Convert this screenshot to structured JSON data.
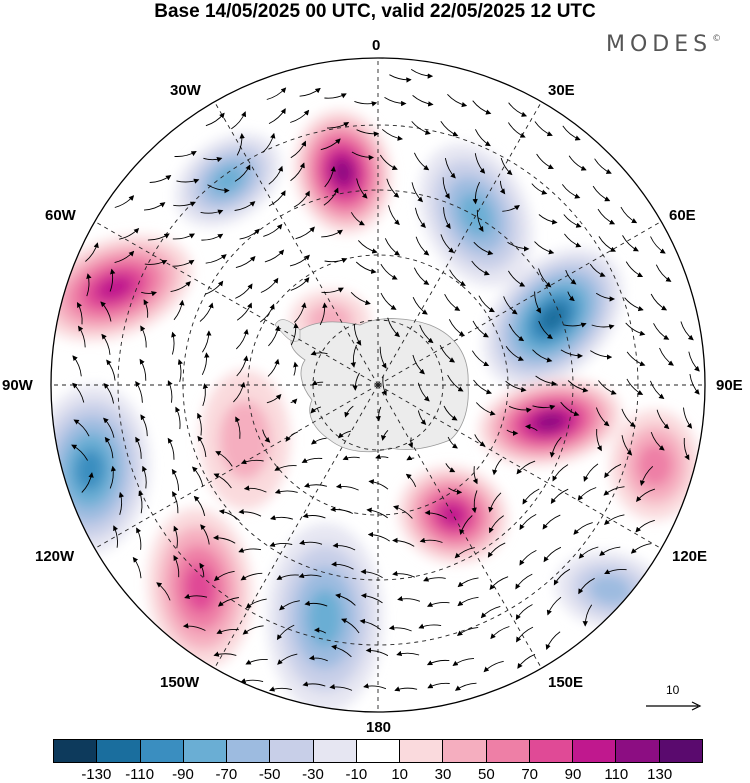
{
  "title": "Base 14/05/2025 00 UTC, valid 22/05/2025 12 UTC",
  "brand": {
    "name": "MODES",
    "mark": "©"
  },
  "lon_labels": {
    "l0": "0",
    "l30e": "30E",
    "l60e": "60E",
    "l90e": "90E",
    "l120e": "120E",
    "l150e": "150E",
    "l180": "180",
    "l150w": "150W",
    "l120w": "120W",
    "l90w": "90W",
    "l60w": "60W",
    "l30w": "30W"
  },
  "reference_vector": {
    "label": "10"
  },
  "colorbar": {
    "colors": [
      "#0d3a5c",
      "#1a6e9e",
      "#3a8ec0",
      "#6aaed4",
      "#9dbbe0",
      "#c8cfe8",
      "#e6e6f2",
      "#ffffff",
      "#fadadd",
      "#f5aebf",
      "#ee7fa6",
      "#e04a96",
      "#c0188e",
      "#8c0d82",
      "#5a0a6e"
    ],
    "ticks": [
      "-130",
      "-110",
      "-90",
      "-70",
      "-50",
      "-30",
      "-10",
      "10",
      "30",
      "50",
      "70",
      "90",
      "110",
      "130"
    ]
  },
  "projection": "south-polar-stereographic",
  "field_features": [
    {
      "sign": "neg",
      "level": 70
    },
    {
      "sign": "pos",
      "level": 110
    },
    {
      "sign": "neg",
      "level": 70
    },
    {
      "sign": "pos",
      "level": 90
    },
    {
      "sign": "neg",
      "level": 110
    },
    {
      "sign": "pos",
      "level": 110
    },
    {
      "sign": "neg",
      "level": 90
    },
    {
      "sign": "pos",
      "level": 70
    },
    {
      "sign": "neg",
      "level": 70
    },
    {
      "sign": "pos",
      "level": 90
    },
    {
      "sign": "pos",
      "level": 50
    },
    {
      "sign": "neg",
      "level": 50
    },
    {
      "sign": "pos",
      "level": 30
    },
    {
      "sign": "pos",
      "level": 30
    }
  ]
}
